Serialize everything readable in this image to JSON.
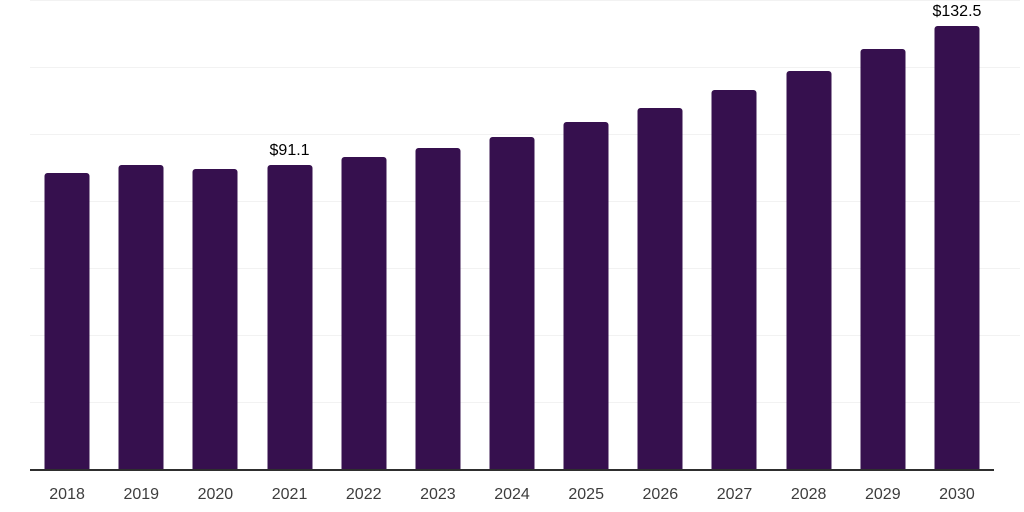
{
  "chart_data": {
    "type": "bar",
    "title": "",
    "xlabel": "",
    "ylabel": "",
    "categories": [
      "2018",
      "2019",
      "2020",
      "2021",
      "2022",
      "2023",
      "2024",
      "2025",
      "2026",
      "2027",
      "2028",
      "2029",
      "2030"
    ],
    "values": [
      88.7,
      91.2,
      89.8,
      91.1,
      93.4,
      96.1,
      99.6,
      103.9,
      108.2,
      113.6,
      119.3,
      125.7,
      132.5
    ],
    "data_labels": {
      "2021": "$91.1",
      "2030": "$132.5"
    },
    "ylim": [
      0,
      140.4
    ],
    "grid": true,
    "gridline_values": [
      20,
      40,
      60,
      80,
      100,
      120,
      140
    ],
    "legend_position": "none",
    "colors": {
      "bar": "#36104e",
      "gridline": "#f2f2f2",
      "axis_line": "#2e2e2e",
      "tick_text": "#3d3d3d",
      "data_label_text": "#000000",
      "background": "#ffffff"
    }
  }
}
